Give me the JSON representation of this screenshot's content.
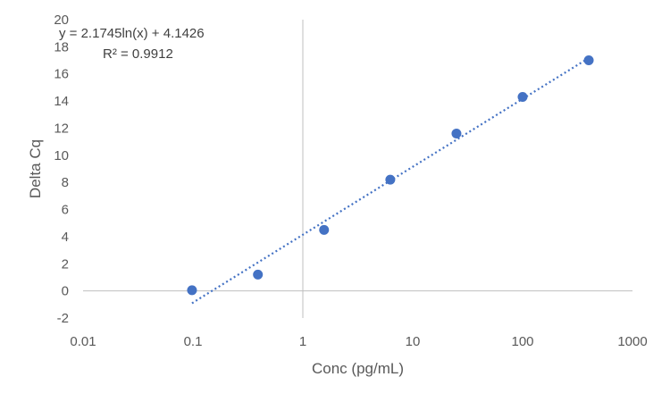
{
  "chart_data": {
    "type": "scatter",
    "x_scale": "log",
    "xlim": [
      0.01,
      1000
    ],
    "ylim": [
      -2,
      20
    ],
    "xlabel": "Conc (pg/mL)",
    "ylabel": "Delta Cq",
    "x_ticks": [
      "0.01",
      "0.1",
      "1",
      "10",
      "100",
      "1000"
    ],
    "y_ticks": [
      "-2",
      "0",
      "2",
      "4",
      "6",
      "8",
      "10",
      "12",
      "14",
      "16",
      "18",
      "20"
    ],
    "x_tick_values": [
      0.01,
      0.1,
      1,
      10,
      100,
      1000
    ],
    "y_tick_values": [
      -2,
      0,
      2,
      4,
      6,
      8,
      10,
      12,
      14,
      16,
      18,
      20
    ],
    "points": [
      {
        "x": 0.098,
        "y": 0.05
      },
      {
        "x": 0.39,
        "y": 1.2
      },
      {
        "x": 1.56,
        "y": 4.5
      },
      {
        "x": 6.25,
        "y": 8.2
      },
      {
        "x": 25,
        "y": 11.6
      },
      {
        "x": 100,
        "y": 14.3
      },
      {
        "x": 400,
        "y": 17.0
      }
    ],
    "trendline": {
      "type": "logarithmic",
      "a": 2.1745,
      "b": 4.1426,
      "x_range": [
        0.098,
        400
      ],
      "equation": "y = 2.1745ln(x) + 4.1426",
      "r_squared": "R² = 0.9912"
    },
    "colors": {
      "marker": "#4472C4",
      "trendline": "#4472C4",
      "axis": "#BFBFBF",
      "text": "#595959"
    },
    "grid": false
  }
}
